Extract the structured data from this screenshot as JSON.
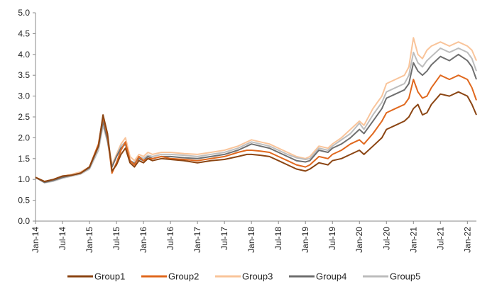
{
  "chart_data": {
    "type": "line",
    "title": "",
    "xlabel": "",
    "ylabel": "",
    "ylim": [
      0,
      5
    ],
    "y_ticks": [
      "0.0",
      "0.5",
      "1.0",
      "1.5",
      "2.0",
      "2.5",
      "3.0",
      "3.5",
      "4.0",
      "4.5",
      "5.0"
    ],
    "x_range_months": [
      0,
      98
    ],
    "x_ticks": [
      {
        "label": "Jan-14",
        "month": 0
      },
      {
        "label": "Jul-14",
        "month": 6
      },
      {
        "label": "Jan-15",
        "month": 12
      },
      {
        "label": "Jul-15",
        "month": 18
      },
      {
        "label": "Jan-16",
        "month": 24
      },
      {
        "label": "Jul-16",
        "month": 30
      },
      {
        "label": "Jan-17",
        "month": 36
      },
      {
        "label": "Jul-17",
        "month": 42
      },
      {
        "label": "Jan-18",
        "month": 48
      },
      {
        "label": "Jul-18",
        "month": 54
      },
      {
        "label": "Jan-19",
        "month": 60
      },
      {
        "label": "Jul-19",
        "month": 66
      },
      {
        "label": "Jan-20",
        "month": 72
      },
      {
        "label": "Jul-20",
        "month": 78
      },
      {
        "label": "Jan-21",
        "month": 84
      },
      {
        "label": "Jul-21",
        "month": 90
      },
      {
        "label": "Jan-22",
        "month": 96
      }
    ],
    "legend_position": "bottom",
    "x_months": [
      0,
      2,
      4,
      6,
      8,
      10,
      12,
      14,
      15,
      16,
      17,
      18,
      19,
      20,
      21,
      22,
      23,
      24,
      25,
      26,
      28,
      30,
      33,
      36,
      39,
      42,
      45,
      47,
      48,
      50,
      52,
      54,
      56,
      58,
      60,
      61,
      63,
      65,
      66,
      68,
      70,
      72,
      73,
      75,
      77,
      78,
      80,
      82,
      83,
      84,
      85,
      86,
      87,
      88,
      90,
      92,
      94,
      96,
      97,
      98
    ],
    "series": [
      {
        "name": "Group1",
        "color": "#8B4513",
        "values": [
          1.05,
          0.95,
          1.0,
          1.08,
          1.1,
          1.15,
          1.3,
          1.8,
          2.55,
          2.1,
          1.2,
          1.35,
          1.6,
          1.75,
          1.4,
          1.3,
          1.45,
          1.4,
          1.5,
          1.45,
          1.5,
          1.48,
          1.45,
          1.4,
          1.45,
          1.48,
          1.55,
          1.6,
          1.6,
          1.58,
          1.55,
          1.45,
          1.35,
          1.25,
          1.2,
          1.25,
          1.4,
          1.35,
          1.45,
          1.5,
          1.6,
          1.7,
          1.6,
          1.8,
          2.0,
          2.2,
          2.3,
          2.4,
          2.5,
          2.7,
          2.8,
          2.55,
          2.6,
          2.8,
          3.05,
          3.0,
          3.1,
          3.0,
          2.8,
          2.55
        ]
      },
      {
        "name": "Group2",
        "color": "#E0681E",
        "values": [
          1.05,
          0.95,
          1.0,
          1.08,
          1.1,
          1.15,
          1.3,
          1.85,
          2.5,
          2.05,
          1.15,
          1.4,
          1.7,
          1.9,
          1.45,
          1.35,
          1.55,
          1.45,
          1.5,
          1.5,
          1.55,
          1.5,
          1.48,
          1.45,
          1.5,
          1.55,
          1.65,
          1.7,
          1.7,
          1.68,
          1.65,
          1.55,
          1.45,
          1.35,
          1.3,
          1.35,
          1.55,
          1.5,
          1.6,
          1.7,
          1.85,
          1.95,
          1.85,
          2.1,
          2.4,
          2.6,
          2.7,
          2.8,
          2.95,
          3.4,
          3.1,
          2.95,
          3.0,
          3.2,
          3.5,
          3.4,
          3.5,
          3.4,
          3.2,
          2.9
        ]
      },
      {
        "name": "Group3",
        "color": "#F9C49A",
        "values": [
          1.05,
          0.95,
          1.0,
          1.08,
          1.12,
          1.18,
          1.3,
          1.75,
          2.45,
          2.0,
          1.35,
          1.6,
          1.85,
          2.0,
          1.55,
          1.45,
          1.6,
          1.55,
          1.65,
          1.6,
          1.65,
          1.65,
          1.62,
          1.6,
          1.65,
          1.7,
          1.8,
          1.9,
          1.95,
          1.9,
          1.85,
          1.75,
          1.65,
          1.55,
          1.5,
          1.55,
          1.8,
          1.75,
          1.85,
          2.0,
          2.2,
          2.4,
          2.3,
          2.7,
          3.0,
          3.3,
          3.4,
          3.5,
          3.7,
          4.4,
          4.0,
          3.9,
          4.1,
          4.2,
          4.3,
          4.2,
          4.3,
          4.2,
          4.1,
          3.85
        ]
      },
      {
        "name": "Group4",
        "color": "#6F6F6F",
        "values": [
          1.05,
          0.93,
          0.98,
          1.05,
          1.1,
          1.15,
          1.28,
          1.8,
          2.4,
          1.95,
          1.3,
          1.55,
          1.75,
          1.85,
          1.45,
          1.38,
          1.5,
          1.45,
          1.55,
          1.5,
          1.55,
          1.55,
          1.52,
          1.5,
          1.55,
          1.6,
          1.7,
          1.8,
          1.85,
          1.8,
          1.75,
          1.65,
          1.55,
          1.45,
          1.42,
          1.45,
          1.7,
          1.65,
          1.75,
          1.85,
          2.0,
          2.2,
          2.1,
          2.4,
          2.7,
          2.95,
          3.05,
          3.15,
          3.3,
          3.8,
          3.6,
          3.5,
          3.6,
          3.75,
          3.95,
          3.85,
          4.0,
          3.85,
          3.7,
          3.4
        ]
      },
      {
        "name": "Group5",
        "color": "#BDBDBD",
        "values": [
          1.05,
          0.92,
          0.96,
          1.03,
          1.08,
          1.13,
          1.25,
          1.7,
          2.3,
          1.9,
          1.3,
          1.55,
          1.8,
          1.9,
          1.45,
          1.4,
          1.55,
          1.5,
          1.58,
          1.55,
          1.6,
          1.6,
          1.58,
          1.55,
          1.6,
          1.65,
          1.75,
          1.85,
          1.9,
          1.85,
          1.8,
          1.7,
          1.6,
          1.52,
          1.48,
          1.5,
          1.75,
          1.7,
          1.8,
          1.95,
          2.1,
          2.35,
          2.2,
          2.55,
          2.85,
          3.1,
          3.2,
          3.3,
          3.5,
          4.05,
          3.8,
          3.7,
          3.85,
          3.95,
          4.15,
          4.05,
          4.15,
          4.05,
          3.9,
          3.6
        ]
      }
    ]
  }
}
